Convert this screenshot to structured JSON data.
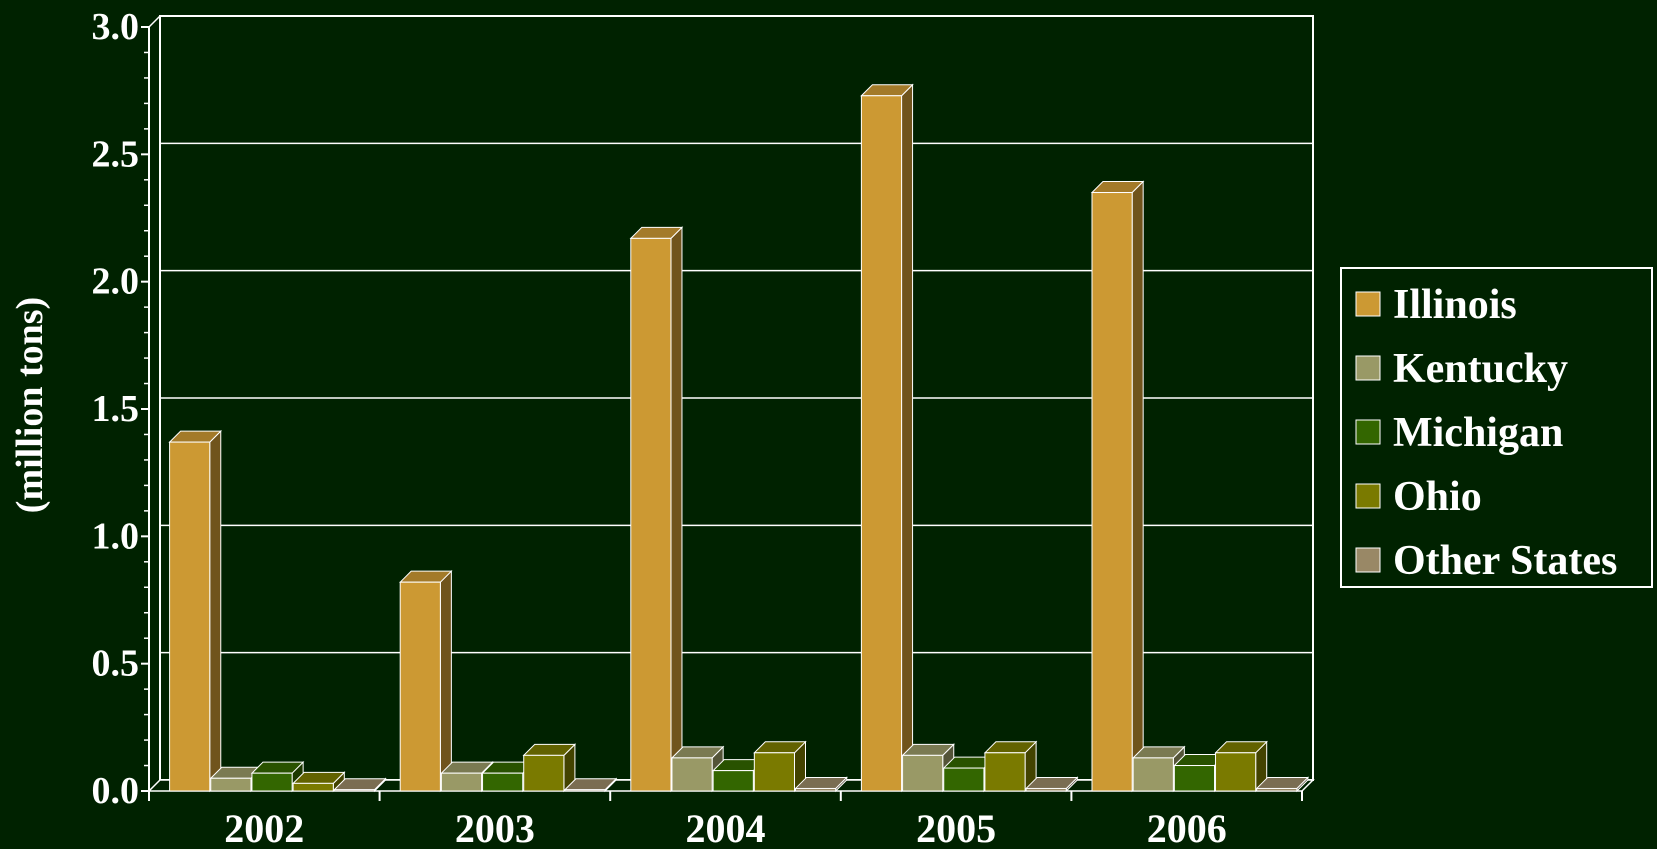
{
  "chart_data": {
    "type": "bar",
    "title": "",
    "xlabel": "",
    "ylabel": "(million tons)",
    "ylim": [
      0,
      3.0
    ],
    "yticks": [
      "0.0",
      "0.5",
      "1.0",
      "1.5",
      "2.0",
      "2.5",
      "3.0"
    ],
    "categories": [
      "2002",
      "2003",
      "2004",
      "2005",
      "2006"
    ],
    "grid": true,
    "legend_position": "right",
    "style": "3d-bar",
    "series": [
      {
        "name": "Illinois",
        "color": "#cc9933",
        "values": [
          1.37,
          0.82,
          2.17,
          2.73,
          2.35
        ]
      },
      {
        "name": "Kentucky",
        "color": "#999966",
        "values": [
          0.05,
          0.07,
          0.13,
          0.14,
          0.13
        ]
      },
      {
        "name": "Michigan",
        "color": "#336600",
        "values": [
          0.07,
          0.07,
          0.08,
          0.09,
          0.1
        ]
      },
      {
        "name": "Ohio",
        "color": "#7a7a00",
        "values": [
          0.03,
          0.14,
          0.15,
          0.15,
          0.15
        ]
      },
      {
        "name": "Other States",
        "color": "#998866",
        "values": [
          0.005,
          0.005,
          0.01,
          0.01,
          0.01
        ]
      }
    ]
  }
}
